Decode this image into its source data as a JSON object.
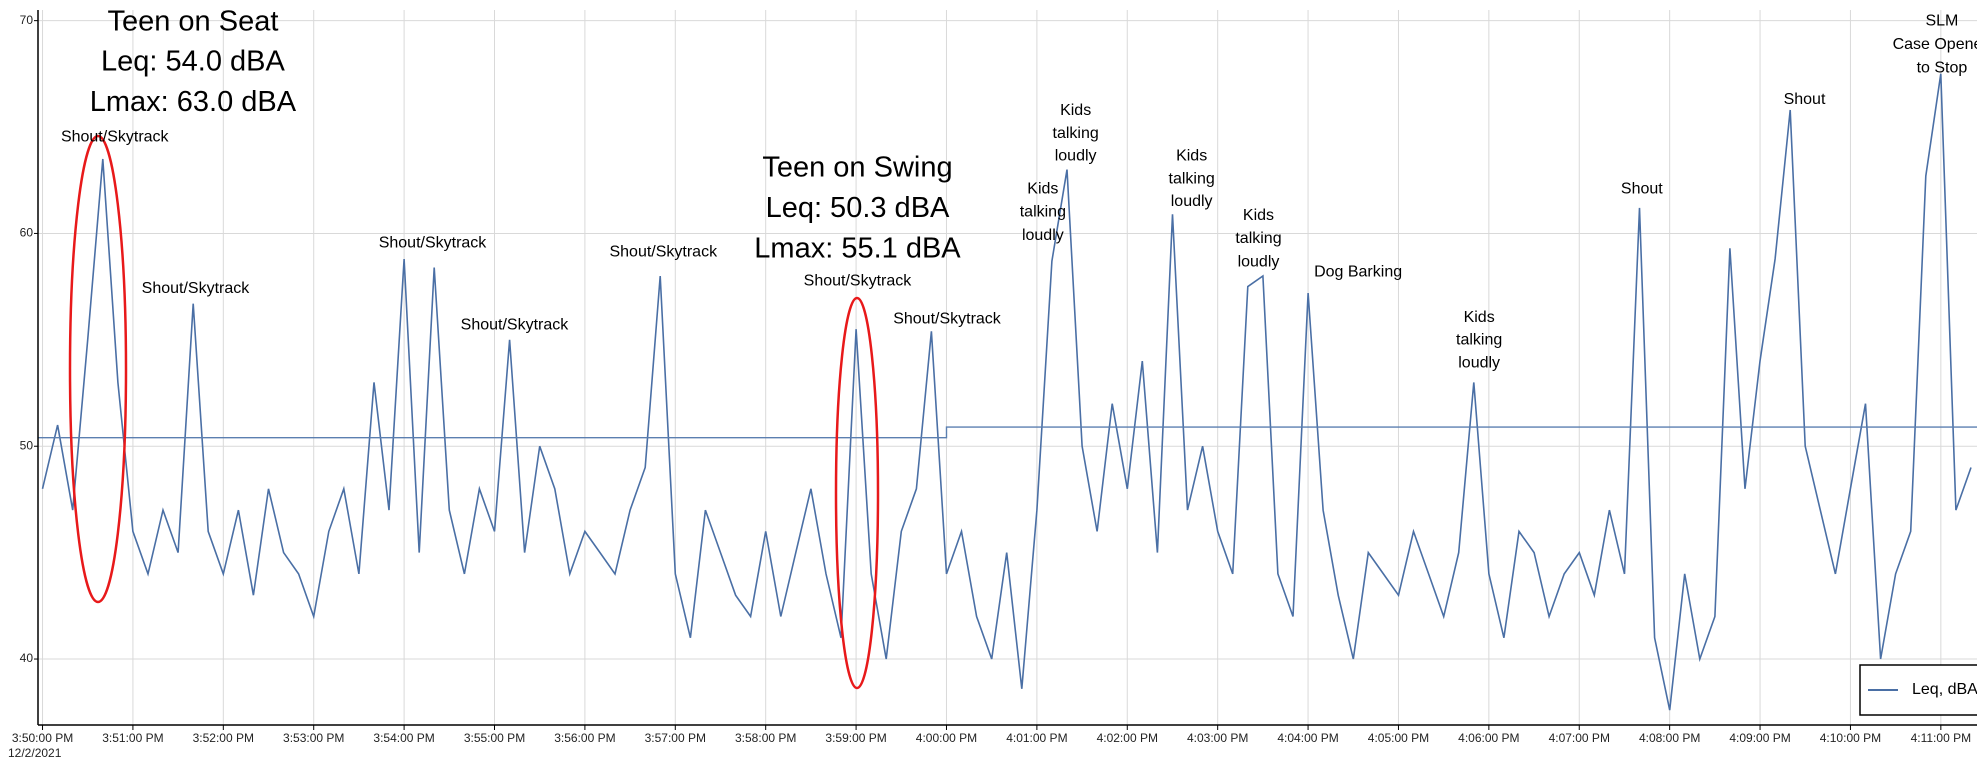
{
  "chart_data": {
    "type": "line",
    "x": [
      "3:50:00 PM",
      "3:50:10 PM",
      "3:50:20 PM",
      "3:50:30 PM",
      "3:50:40 PM",
      "3:50:50 PM",
      "3:51:00 PM",
      "3:51:10 PM",
      "3:51:20 PM",
      "3:51:30 PM",
      "3:51:40 PM",
      "3:51:50 PM",
      "3:52:00 PM",
      "3:52:10 PM",
      "3:52:20 PM",
      "3:52:30 PM",
      "3:52:40 PM",
      "3:52:50 PM",
      "3:53:00 PM",
      "3:53:10 PM",
      "3:53:20 PM",
      "3:53:30 PM",
      "3:53:40 PM",
      "3:53:50 PM",
      "3:54:00 PM",
      "3:54:10 PM",
      "3:54:20 PM",
      "3:54:30 PM",
      "3:54:40 PM",
      "3:54:50 PM",
      "3:55:00 PM",
      "3:55:10 PM",
      "3:55:20 PM",
      "3:55:30 PM",
      "3:55:40 PM",
      "3:55:50 PM",
      "3:56:00 PM",
      "3:56:10 PM",
      "3:56:20 PM",
      "3:56:30 PM",
      "3:56:40 PM",
      "3:56:50 PM",
      "3:57:00 PM",
      "3:57:10 PM",
      "3:57:20 PM",
      "3:57:30 PM",
      "3:57:40 PM",
      "3:57:50 PM",
      "3:58:00 PM",
      "3:58:10 PM",
      "3:58:20 PM",
      "3:58:30 PM",
      "3:58:40 PM",
      "3:58:50 PM",
      "3:59:00 PM",
      "3:59:10 PM",
      "3:59:20 PM",
      "3:59:30 PM",
      "3:59:40 PM",
      "3:59:50 PM",
      "4:00:00 PM",
      "4:00:10 PM",
      "4:00:20 PM",
      "4:00:30 PM",
      "4:00:40 PM",
      "4:00:50 PM",
      "4:01:00 PM",
      "4:01:10 PM",
      "4:01:20 PM",
      "4:01:30 PM",
      "4:01:40 PM",
      "4:01:50 PM",
      "4:02:00 PM",
      "4:02:10 PM",
      "4:02:20 PM",
      "4:02:30 PM",
      "4:02:40 PM",
      "4:02:50 PM",
      "4:03:00 PM",
      "4:03:10 PM",
      "4:03:20 PM",
      "4:03:30 PM",
      "4:03:40 PM",
      "4:03:50 PM",
      "4:04:00 PM",
      "4:04:10 PM",
      "4:04:20 PM",
      "4:04:30 PM",
      "4:04:40 PM",
      "4:04:50 PM",
      "4:05:00 PM",
      "4:05:10 PM",
      "4:05:20 PM",
      "4:05:30 PM",
      "4:05:40 PM",
      "4:05:50 PM",
      "4:06:00 PM",
      "4:06:10 PM",
      "4:06:20 PM",
      "4:06:30 PM",
      "4:06:40 PM",
      "4:06:50 PM",
      "4:07:00 PM",
      "4:07:10 PM",
      "4:07:20 PM",
      "4:07:30 PM",
      "4:07:40 PM",
      "4:07:50 PM",
      "4:08:00 PM",
      "4:08:10 PM",
      "4:08:20 PM",
      "4:08:30 PM",
      "4:08:40 PM",
      "4:08:50 PM",
      "4:09:00 PM",
      "4:09:10 PM",
      "4:09:20 PM",
      "4:09:30 PM",
      "4:09:40 PM",
      "4:09:50 PM",
      "4:10:00 PM",
      "4:10:10 PM",
      "4:10:20 PM",
      "4:10:30 PM",
      "4:10:40 PM",
      "4:10:50 PM",
      "4:11:00 PM",
      "4:11:10 PM",
      "4:11:20 PM"
    ],
    "series": [
      {
        "name": "Leq, dBA",
        "color": "#4a6fa5",
        "values": [
          48,
          51,
          47,
          55,
          63.5,
          53,
          46,
          44,
          47,
          45,
          56.7,
          46,
          44,
          47,
          43,
          48,
          45,
          44,
          42,
          46,
          48,
          44,
          53,
          47,
          58.8,
          45,
          58.4,
          47,
          44,
          48,
          46,
          55,
          45,
          50,
          48,
          44,
          46,
          45,
          44,
          47,
          49,
          58,
          44,
          41,
          47,
          45,
          43,
          42,
          46,
          42,
          45,
          48,
          44,
          41,
          55.5,
          44,
          40,
          46,
          48,
          55.4,
          44,
          46,
          42,
          40,
          45,
          38.6,
          47,
          58.7,
          63,
          50,
          46,
          52,
          48,
          54,
          45,
          60.9,
          47,
          50,
          46,
          44,
          57.5,
          58,
          44,
          42,
          57.2,
          47,
          43,
          40,
          45,
          44,
          43,
          46,
          44,
          42,
          45,
          53,
          44,
          41,
          46,
          45,
          42,
          44,
          45,
          43,
          47,
          44,
          61.2,
          41,
          37.6,
          44,
          40,
          42,
          59.3,
          48,
          54,
          58.8,
          65.8,
          50,
          47,
          44,
          48,
          52,
          40,
          44,
          46,
          62.7,
          67.5,
          47,
          49
        ]
      },
      {
        "color": "#5b7fb0",
        "x": [
          "3:49:57 PM",
          "4:00:00 PM",
          "4:00:00 PM",
          "4:11:24 PM"
        ],
        "values": [
          50.4,
          50.4,
          50.9,
          50.9
        ]
      }
    ],
    "xlim": [
      "3:49:57 PM",
      "4:11:24 PM"
    ],
    "xticks": [
      "3:50:00 PM",
      "3:51:00 PM",
      "3:52:00 PM",
      "3:53:00 PM",
      "3:54:00 PM",
      "3:55:00 PM",
      "3:56:00 PM",
      "3:57:00 PM",
      "3:58:00 PM",
      "3:59:00 PM",
      "4:00:00 PM",
      "4:01:00 PM",
      "4:02:00 PM",
      "4:03:00 PM",
      "4:04:00 PM",
      "4:05:00 PM",
      "4:06:00 PM",
      "4:07:00 PM",
      "4:08:00 PM",
      "4:09:00 PM",
      "4:10:00 PM",
      "4:11:00 PM"
    ],
    "x_date": "12/2/2021",
    "ylim": [
      36.9,
      70.5
    ],
    "yticks": [
      40,
      50,
      60,
      70
    ],
    "grid": true,
    "legend": "lower right",
    "annotations": [
      {
        "lines": [
          "Teen on Seat",
          "Leq: 54.0 dBA",
          "Lmax: 63.0 dBA"
        ],
        "color": "#e8191a"
      },
      {
        "lines": [
          "Shout/Skytrack"
        ]
      },
      {
        "lines": [
          "Shout/Skytrack"
        ]
      },
      {
        "lines": [
          "Shout/Skytrack"
        ]
      },
      {
        "lines": [
          "Shout/Skytrack"
        ]
      },
      {
        "lines": [
          "Shout/Skytrack"
        ]
      },
      {
        "lines": [
          "Teen on Swing",
          "Leq: 50.3 dBA",
          "Lmax: 55.1 dBA"
        ],
        "color": "#e8191a"
      },
      {
        "lines": [
          "Shout/Skytrack"
        ]
      },
      {
        "lines": [
          "Shout/Skytrack"
        ]
      },
      {
        "lines": [
          "Kids",
          "talking",
          "loudly"
        ]
      },
      {
        "lines": [
          "Kids",
          "talking",
          "loudly"
        ]
      },
      {
        "lines": [
          "Kids",
          "talking",
          "loudly"
        ]
      },
      {
        "lines": [
          "Kids",
          "talking",
          "loudly"
        ]
      },
      {
        "lines": [
          "Dog Barking"
        ]
      },
      {
        "lines": [
          "Kids",
          "talking",
          "loudly"
        ]
      },
      {
        "lines": [
          "Shout"
        ]
      },
      {
        "lines": [
          "Shout"
        ]
      },
      {
        "lines": [
          "SLM",
          "Case Opened",
          "to Stop"
        ]
      }
    ]
  }
}
